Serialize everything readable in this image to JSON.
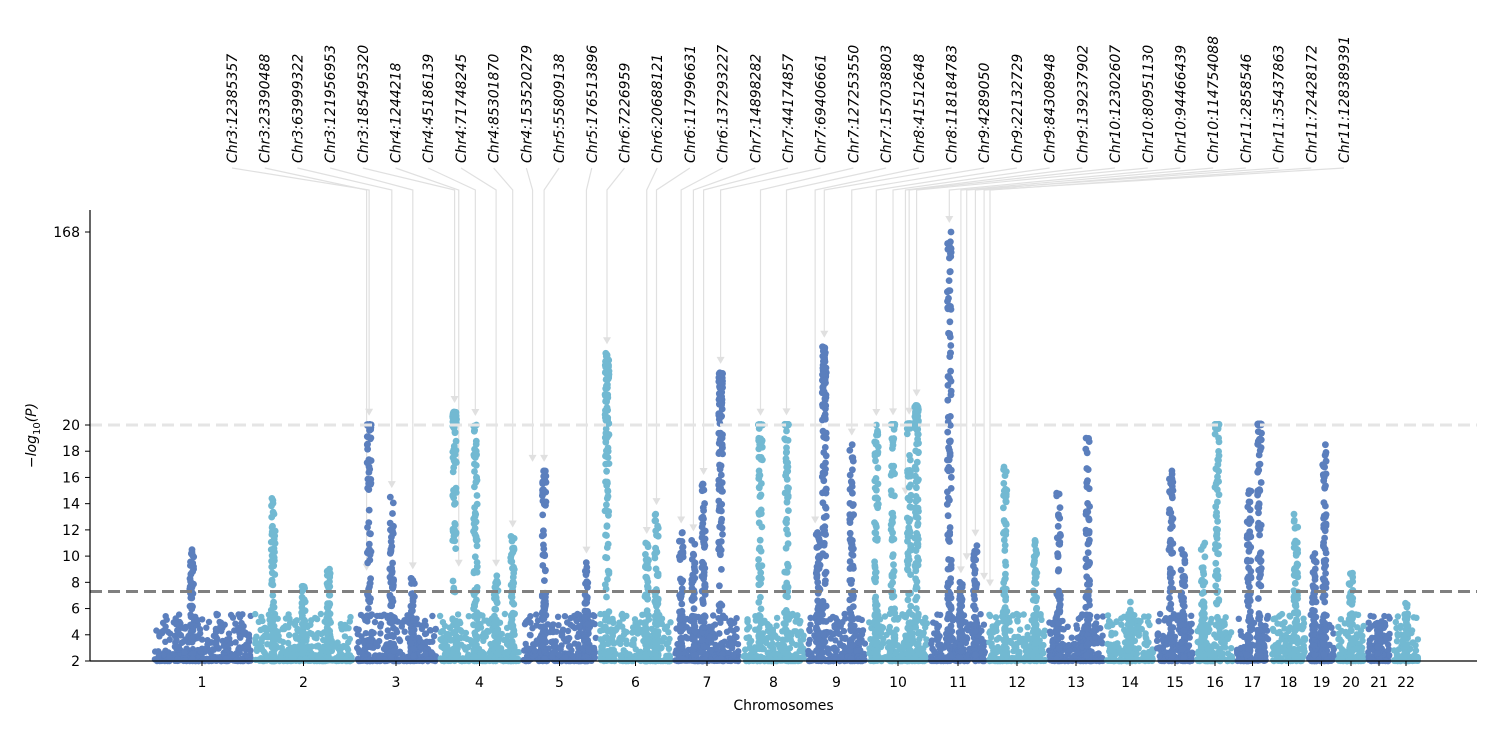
{
  "chart_data": {
    "type": "scatter",
    "subtype": "manhattan",
    "title": "",
    "xlabel": "Chromosomes",
    "ylabel": "-log10(P)",
    "colors": {
      "dark": "#5b7fbd",
      "light": "#72b9d2",
      "threshold": "#808080",
      "break_line": "#e5e5e5",
      "annotation": "#e0e0e0"
    },
    "genome_wide_threshold": 7.3,
    "axis_break_at": 20,
    "yticks": [
      {
        "value": 2,
        "label": "2"
      },
      {
        "value": 4,
        "label": "4"
      },
      {
        "value": 6,
        "label": "6"
      },
      {
        "value": 8,
        "label": "8"
      },
      {
        "value": 10,
        "label": "10"
      },
      {
        "value": 12,
        "label": "12"
      },
      {
        "value": 14,
        "label": "14"
      },
      {
        "value": 16,
        "label": "16"
      },
      {
        "value": 18,
        "label": "18"
      },
      {
        "value": 20,
        "label": "20"
      },
      {
        "value": 168,
        "label": "168"
      }
    ],
    "chromosomes": [
      {
        "name": "1",
        "peaks": [
          [
            0.4,
            10.5
          ]
        ]
      },
      {
        "name": "2",
        "peaks": [
          [
            0.2,
            14.4
          ],
          [
            0.5,
            7.7
          ],
          [
            0.75,
            9.0
          ]
        ]
      },
      {
        "name": "3",
        "peaks": [
          [
            0.18,
            20.2
          ],
          [
            0.45,
            14.5
          ],
          [
            0.7,
            8.3
          ]
        ]
      },
      {
        "name": "4",
        "peaks": [
          [
            0.2,
            30.0
          ],
          [
            0.45,
            20.0
          ],
          [
            0.7,
            8.5
          ],
          [
            0.9,
            11.5
          ]
        ]
      },
      {
        "name": "5",
        "peaks": [
          [
            0.3,
            16.5
          ],
          [
            0.85,
            9.5
          ]
        ]
      },
      {
        "name": "6",
        "peaks": [
          [
            0.12,
            75.0
          ],
          [
            0.65,
            11.0
          ],
          [
            0.78,
            13.2
          ]
        ]
      },
      {
        "name": "7",
        "peaks": [
          [
            0.12,
            11.8
          ],
          [
            0.3,
            11.2
          ],
          [
            0.45,
            15.5
          ],
          [
            0.7,
            60.0
          ]
        ]
      },
      {
        "name": "8",
        "peaks": [
          [
            0.3,
            20.2
          ],
          [
            0.7,
            20.5
          ]
        ]
      },
      {
        "name": "9",
        "peaks": [
          [
            0.2,
            11.8
          ],
          [
            0.3,
            80.0
          ],
          [
            0.75,
            18.5
          ]
        ]
      },
      {
        "name": "10",
        "peaks": [
          [
            0.15,
            20.0
          ],
          [
            0.42,
            20.5
          ],
          [
            0.68,
            21.0
          ],
          [
            0.8,
            35.0
          ]
        ]
      },
      {
        "name": "11",
        "peaks": [
          [
            0.35,
            168.0
          ],
          [
            0.55,
            8.0
          ],
          [
            0.8,
            10.8
          ]
        ]
      },
      {
        "name": "12",
        "peaks": [
          [
            0.3,
            16.8
          ],
          [
            0.8,
            11.2
          ]
        ]
      },
      {
        "name": "13",
        "peaks": [
          [
            0.2,
            14.8
          ],
          [
            0.7,
            19.0
          ]
        ]
      },
      {
        "name": "14",
        "peaks": [
          [
            0.5,
            6.5
          ]
        ]
      },
      {
        "name": "15",
        "peaks": [
          [
            0.4,
            16.5
          ],
          [
            0.7,
            10.5
          ]
        ]
      },
      {
        "name": "16",
        "peaks": [
          [
            0.2,
            11.0
          ],
          [
            0.55,
            20.5
          ]
        ]
      },
      {
        "name": "17",
        "peaks": [
          [
            0.4,
            15.0
          ],
          [
            0.7,
            20.8
          ]
        ]
      },
      {
        "name": "18",
        "peaks": [
          [
            0.7,
            13.2
          ]
        ]
      },
      {
        "name": "19",
        "peaks": [
          [
            0.25,
            10.2
          ],
          [
            0.6,
            18.5
          ]
        ]
      },
      {
        "name": "20",
        "peaks": [
          [
            0.5,
            8.7
          ]
        ]
      },
      {
        "name": "21",
        "peaks": [
          [
            0.5,
            4.9
          ]
        ]
      },
      {
        "name": "22",
        "peaks": [
          [
            0.5,
            6.4
          ]
        ]
      }
    ],
    "annotations": [
      {
        "label": "Chr3:12385357",
        "chr": "3",
        "pos": 0.18,
        "y": 20.2
      },
      {
        "label": "Chr3:23390488",
        "chr": "3",
        "pos": 0.15,
        "y": 8.2
      },
      {
        "label": "Chr3:63999322",
        "chr": "3",
        "pos": 0.45,
        "y": 14.5
      },
      {
        "label": "Chr3:121956953",
        "chr": "3",
        "pos": 0.7,
        "y": 8.3
      },
      {
        "label": "Chr3:185495320",
        "chr": "4",
        "pos": 0.2,
        "y": 30.0
      },
      {
        "label": "Chr4:1244218",
        "chr": "4",
        "pos": 0.25,
        "y": 8.5
      },
      {
        "label": "Chr4:45186139",
        "chr": "4",
        "pos": 0.45,
        "y": 20.0
      },
      {
        "label": "Chr4:71748245",
        "chr": "4",
        "pos": 0.7,
        "y": 8.5
      },
      {
        "label": "Chr4:85301870",
        "chr": "4",
        "pos": 0.9,
        "y": 11.5
      },
      {
        "label": "Chr4:153520279",
        "chr": "5",
        "pos": 0.15,
        "y": 16.5
      },
      {
        "label": "Chr5:55809138",
        "chr": "5",
        "pos": 0.3,
        "y": 16.5
      },
      {
        "label": "Chr5:176513896",
        "chr": "5",
        "pos": 0.85,
        "y": 9.5
      },
      {
        "label": "Chr6:7226959",
        "chr": "6",
        "pos": 0.12,
        "y": 75.0
      },
      {
        "label": "Chr6:20688121",
        "chr": "6",
        "pos": 0.65,
        "y": 11.0
      },
      {
        "label": "Chr6:117996631",
        "chr": "6",
        "pos": 0.78,
        "y": 13.2
      },
      {
        "label": "Chr6:137293227",
        "chr": "7",
        "pos": 0.12,
        "y": 11.8
      },
      {
        "label": "Chr7:14898282",
        "chr": "7",
        "pos": 0.3,
        "y": 11.2
      },
      {
        "label": "Chr7:44174857",
        "chr": "7",
        "pos": 0.45,
        "y": 15.5
      },
      {
        "label": "Chr7:69406661",
        "chr": "7",
        "pos": 0.7,
        "y": 60.0
      },
      {
        "label": "Chr7:127253550",
        "chr": "8",
        "pos": 0.3,
        "y": 20.2
      },
      {
        "label": "Chr7:157038803",
        "chr": "8",
        "pos": 0.7,
        "y": 20.5
      },
      {
        "label": "Chr8:41512648",
        "chr": "9",
        "pos": 0.15,
        "y": 11.8
      },
      {
        "label": "Chr8:118184783",
        "chr": "9",
        "pos": 0.3,
        "y": 80.0
      },
      {
        "label": "Chr9:4289050",
        "chr": "9",
        "pos": 0.75,
        "y": 18.5
      },
      {
        "label": "Chr9:22132729",
        "chr": "10",
        "pos": 0.15,
        "y": 20.0
      },
      {
        "label": "Chr9:84308948",
        "chr": "10",
        "pos": 0.42,
        "y": 20.5
      },
      {
        "label": "Chr9:139237902",
        "chr": "10",
        "pos": 0.62,
        "y": 14.0
      },
      {
        "label": "Chr10:12302607",
        "chr": "10",
        "pos": 0.68,
        "y": 21.0
      },
      {
        "label": "Chr10:80951130",
        "chr": "10",
        "pos": 0.8,
        "y": 35.0
      },
      {
        "label": "Chr10:94466439",
        "chr": "11",
        "pos": 0.35,
        "y": 168.0
      },
      {
        "label": "Chr10:114754088",
        "chr": "11",
        "pos": 0.55,
        "y": 8.0
      },
      {
        "label": "Chr11:2858546",
        "chr": "11",
        "pos": 0.8,
        "y": 10.8
      },
      {
        "label": "Chr11:35437863",
        "chr": "11",
        "pos": 0.65,
        "y": 9.0
      },
      {
        "label": "Chr11:72428172",
        "chr": "12",
        "pos": 0.05,
        "y": 7.0
      },
      {
        "label": "Chr11:128389391",
        "chr": "11",
        "pos": 0.95,
        "y": 7.5
      }
    ]
  }
}
